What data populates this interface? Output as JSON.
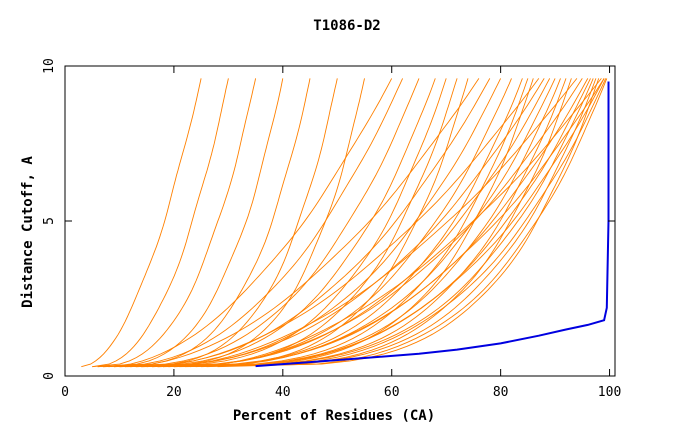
{
  "chart_data": {
    "type": "line",
    "title": "T1086-D2",
    "xlabel": "Percent of Residues (CA)",
    "ylabel": "Distance Cutoff, A",
    "xlim": [
      0,
      101
    ],
    "ylim": [
      0,
      10
    ],
    "x_ticks": [
      0,
      20,
      40,
      60,
      80,
      100
    ],
    "y_ticks": [
      0,
      5,
      10
    ],
    "x_tick_labels": [
      "0",
      "20",
      "40",
      "60",
      "80",
      "100"
    ],
    "y_tick_labels": [
      "0",
      "5",
      "10"
    ],
    "colors": {
      "models": "#ff8000",
      "highlight": "#0000e0",
      "axes": "#000000"
    },
    "grid": false,
    "legend": "none",
    "highlight_series": {
      "points": [
        [
          35,
          0.32
        ],
        [
          45,
          0.45
        ],
        [
          55,
          0.58
        ],
        [
          65,
          0.72
        ],
        [
          72,
          0.85
        ],
        [
          80,
          1.05
        ],
        [
          87,
          1.3
        ],
        [
          92,
          1.5
        ],
        [
          96,
          1.65
        ],
        [
          99,
          1.8
        ],
        [
          99.5,
          2.2
        ],
        [
          99.8,
          5
        ],
        [
          99.8,
          7.5
        ],
        [
          99.8,
          9.5
        ]
      ]
    },
    "model_series_endpoints": [
      [
        3,
        0.3,
        25,
        9.6
      ],
      [
        5,
        0.3,
        30,
        9.6
      ],
      [
        5,
        0.3,
        35,
        9.6
      ],
      [
        6,
        0.3,
        40,
        9.6
      ],
      [
        6,
        0.3,
        45,
        9.6
      ],
      [
        7,
        0.3,
        50,
        9.6
      ],
      [
        7,
        0.3,
        55,
        9.6
      ],
      [
        8,
        0.3,
        60,
        9.6
      ],
      [
        8,
        0.3,
        62,
        9.6
      ],
      [
        9,
        0.3,
        65,
        9.6
      ],
      [
        9,
        0.3,
        68,
        9.6
      ],
      [
        10,
        0.3,
        70,
        9.6
      ],
      [
        10,
        0.3,
        72,
        9.6
      ],
      [
        11,
        0.3,
        74,
        9.6
      ],
      [
        11,
        0.3,
        76,
        9.6
      ],
      [
        12,
        0.3,
        78,
        9.6
      ],
      [
        12,
        0.3,
        80,
        9.6
      ],
      [
        13,
        0.3,
        82,
        9.6
      ],
      [
        13,
        0.3,
        84,
        9.6
      ],
      [
        14,
        0.3,
        85,
        9.6
      ],
      [
        14,
        0.3,
        86,
        9.6
      ],
      [
        15,
        0.3,
        87,
        9.6
      ],
      [
        15,
        0.3,
        88,
        9.6
      ],
      [
        16,
        0.3,
        89,
        9.6
      ],
      [
        16,
        0.3,
        90,
        9.6
      ],
      [
        17,
        0.3,
        91,
        9.6
      ],
      [
        17,
        0.3,
        92,
        9.6
      ],
      [
        18,
        0.3,
        93,
        9.6
      ],
      [
        18,
        0.3,
        94,
        9.6
      ],
      [
        19,
        0.3,
        95,
        9.6
      ],
      [
        19,
        0.3,
        96,
        9.6
      ],
      [
        20,
        0.3,
        96.5,
        9.6
      ],
      [
        20,
        0.3,
        97,
        9.6
      ],
      [
        21,
        0.3,
        97.5,
        9.6
      ],
      [
        22,
        0.3,
        98,
        9.6
      ],
      [
        23,
        0.3,
        98.5,
        9.6
      ],
      [
        24,
        0.3,
        99,
        9.6
      ],
      [
        25,
        0.3,
        99,
        9.6
      ],
      [
        26,
        0.3,
        99.3,
        9.6
      ],
      [
        28,
        0.3,
        99.5,
        9.6
      ]
    ]
  }
}
